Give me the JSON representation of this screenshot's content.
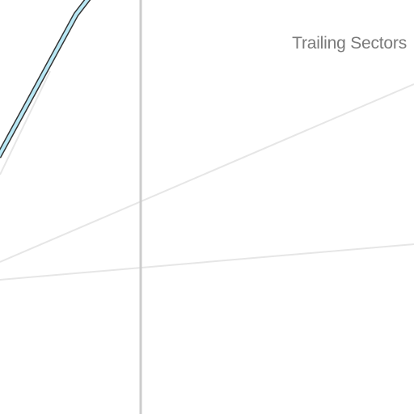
{
  "map": {
    "area_label": "Trailing Sectors",
    "colors": {
      "background": "#ffffff",
      "minor_road": "#e6e6e6",
      "gridline": "#cccccc",
      "route_fill": "#b9e8f5",
      "route_outline": "#333333",
      "label_text": "#7a7a7a"
    }
  }
}
